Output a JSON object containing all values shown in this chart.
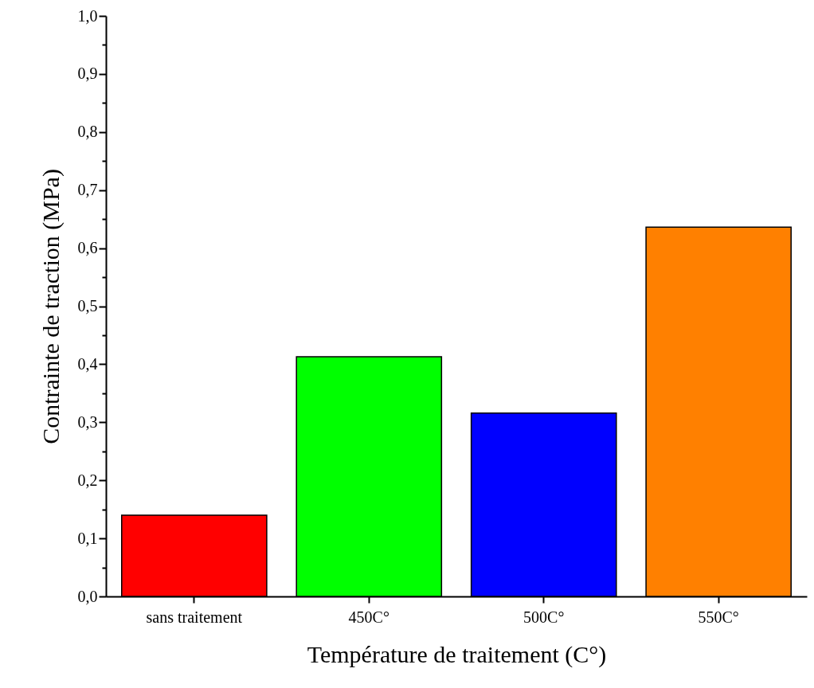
{
  "chart_data": {
    "type": "bar",
    "xlabel": "Température de traitement (C°)",
    "ylabel": "Contrainte de traction (MPa)",
    "categories": [
      "sans traitement",
      "450C°",
      "500C°",
      "550C°"
    ],
    "values": [
      0.14,
      0.413,
      0.316,
      0.636
    ],
    "colors": [
      "#ff0000",
      "#00ff00",
      "#0000ff",
      "#ff8000"
    ],
    "ylim": [
      0,
      1
    ],
    "yticks": [
      {
        "value": 0,
        "label": "0,0"
      },
      {
        "value": 0.05,
        "label": null
      },
      {
        "value": 0.1,
        "label": "0,1"
      },
      {
        "value": 0.15,
        "label": null
      },
      {
        "value": 0.2,
        "label": "0,2"
      },
      {
        "value": 0.25,
        "label": null
      },
      {
        "value": 0.3,
        "label": "0,3"
      },
      {
        "value": 0.35,
        "label": null
      },
      {
        "value": 0.4,
        "label": "0,4"
      },
      {
        "value": 0.45,
        "label": null
      },
      {
        "value": 0.5,
        "label": "0,5"
      },
      {
        "value": 0.55,
        "label": null
      },
      {
        "value": 0.6,
        "label": "0,6"
      },
      {
        "value": 0.65,
        "label": null
      },
      {
        "value": 0.7,
        "label": "0,7"
      },
      {
        "value": 0.75,
        "label": null
      },
      {
        "value": 0.8,
        "label": "0,8"
      },
      {
        "value": 0.85,
        "label": null
      },
      {
        "value": 0.9,
        "label": "0,9"
      },
      {
        "value": 0.95,
        "label": null
      },
      {
        "value": 1,
        "label": "1,0"
      }
    ],
    "grid": false
  }
}
